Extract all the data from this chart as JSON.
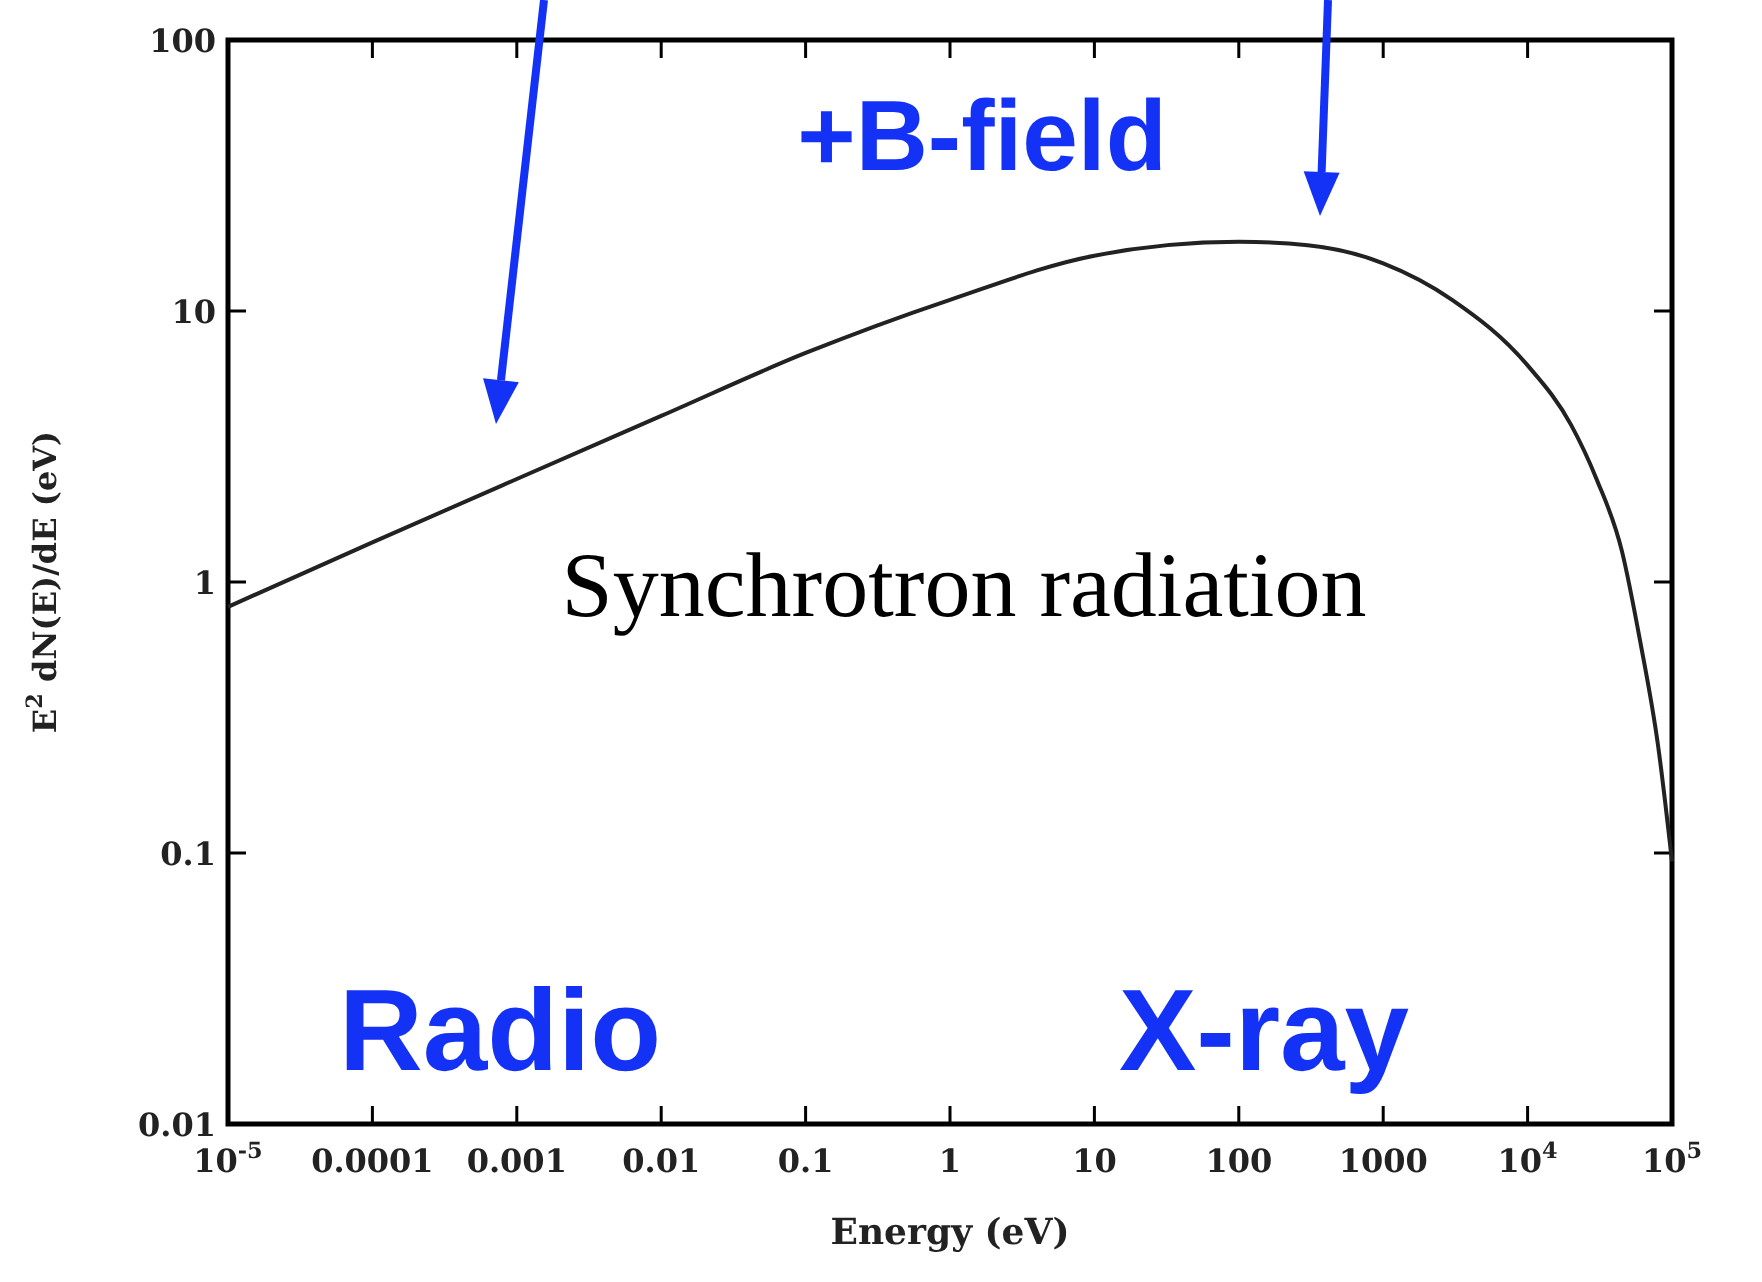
{
  "chart_data": {
    "type": "line",
    "xlabel": "Energy (eV)",
    "ylabel": "E$^{2}$ dN(E)/dE (eV)",
    "log": "xy",
    "grid": false,
    "marker": "none",
    "line_style": "solid",
    "xlim": [
      1e-05,
      100000
    ],
    "xticks": [
      {
        "value": 1e-05,
        "label": "10$^{-5}$"
      },
      0.0001,
      0.001,
      0.01,
      0.1,
      1,
      10,
      100,
      1000,
      {
        "value": 10000,
        "label": "10$^{4}$"
      },
      {
        "value": 100000,
        "label": "10$^{5}$"
      }
    ],
    "ylim": [
      0.01,
      100
    ],
    "yticks": [
      0.01,
      0.1,
      1,
      10,
      100
    ],
    "x": [
      1e-05,
      0.0001,
      0.001,
      0.01,
      0.1,
      1,
      10,
      100,
      300,
      1000,
      3000,
      10000,
      20000,
      30000,
      45000,
      60000,
      80000,
      100000
    ],
    "series": [
      {
        "color": "#222222",
        "values": [
          0.81,
          1.4,
          2.4,
          4.1,
          7,
          11,
          16,
          18,
          17.5,
          15,
          11,
          6.3,
          3.8,
          2.4,
          1.3,
          0.61,
          0.25,
          0.093
        ]
      }
    ],
    "annotations": [
      "+B-field",
      "Synchrotron radiation",
      "Radio",
      "X-ray"
    ]
  }
}
